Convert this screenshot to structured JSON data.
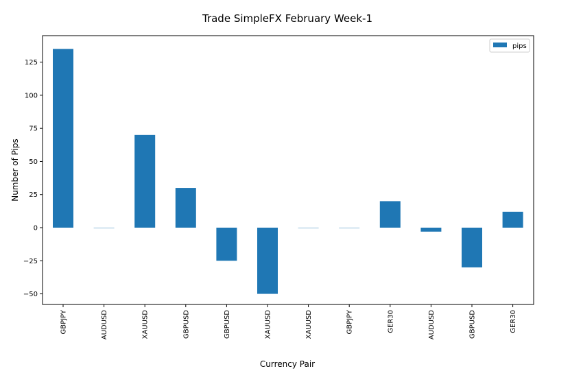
{
  "chart_data": {
    "type": "bar",
    "title": "Trade SimpleFX February Week-1",
    "xlabel": "Currency Pair",
    "ylabel": "Number of Pips",
    "categories": [
      "GBPJPY",
      "AUDUSD",
      "XAUUSD",
      "GBPUSD",
      "GBPUSD",
      "XAUUSD",
      "XAUUSD",
      "GBPJPY",
      "GER30",
      "AUDUSD",
      "GBPUSD",
      "GER30"
    ],
    "series": [
      {
        "name": "pips",
        "values": [
          135,
          0,
          70,
          30,
          -25,
          -50,
          0,
          0,
          20,
          -3,
          -30,
          12
        ]
      }
    ],
    "ylim": [
      -58,
      145
    ],
    "yticks": [
      -50,
      -25,
      0,
      25,
      50,
      75,
      100,
      125
    ],
    "legend_position": "top-right",
    "grid": false,
    "colors": {
      "bar": "#1f77b4"
    }
  }
}
